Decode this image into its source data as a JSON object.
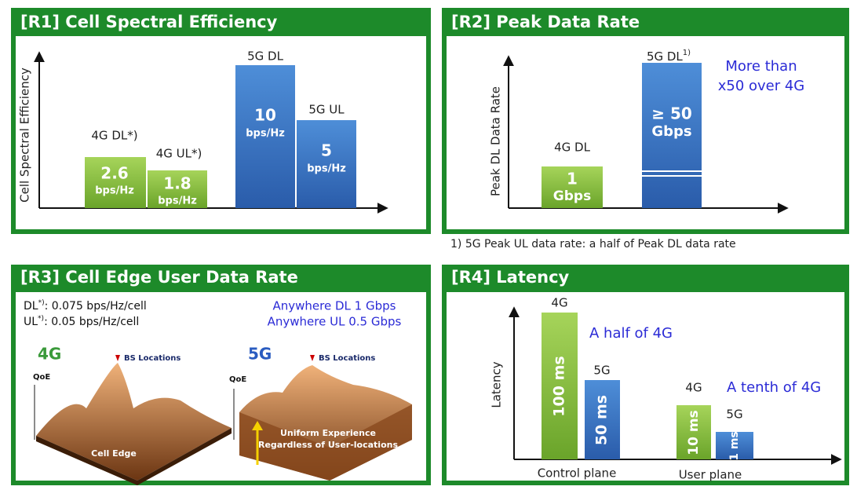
{
  "panels": [
    {
      "title": "[R1] Cell Spectral Efficiency",
      "axis_label": "Cell Spectral Efficiency",
      "bars": [
        {
          "label": "4G DL*)",
          "value": "2.6",
          "unit": "bps/Hz"
        },
        {
          "label": "4G UL*)",
          "value": "1.8",
          "unit": "bps/Hz"
        },
        {
          "label": "5G DL",
          "value": "10",
          "unit": "bps/Hz"
        },
        {
          "label": "5G UL",
          "value": "5",
          "unit": "bps/Hz"
        }
      ]
    },
    {
      "title": "[R2] Peak Data Rate",
      "axis_label": "Peak DL Data Rate",
      "bars": [
        {
          "label": "4G DL",
          "value": "1",
          "unit": "Gbps"
        },
        {
          "label": "5G DL",
          "sup": "1)",
          "value": "≥ 50",
          "unit": "Gbps"
        }
      ],
      "note": [
        "More than",
        "x50 over 4G"
      ],
      "footnote": "1) 5G Peak UL data rate: a half of Peak DL data rate"
    },
    {
      "title": "[R3] Cell Edge User Data Rate",
      "lines": [
        {
          "name": "DL",
          "sup": "*)",
          "text": ": 0.075 bps/Hz/cell"
        },
        {
          "name": "UL",
          "sup": "*)",
          "text": ": 0.05 bps/Hz/cell"
        }
      ],
      "goals": [
        "Anywhere DL 1 Gbps",
        "Anywhere UL 0.5 Gbps"
      ],
      "left": {
        "title": "4G",
        "axis": "QoE",
        "marker": "BS Locations",
        "caption": "Cell Edge"
      },
      "right": {
        "title": "5G",
        "axis": "QoE",
        "marker": "BS Locations",
        "caption": [
          "Uniform Experience",
          "Regardless of User-locations"
        ]
      }
    },
    {
      "title": "[R4] Latency",
      "axis_label": "Latency",
      "groups": [
        {
          "name": "Control plane",
          "note": "A half of 4G",
          "bars": [
            {
              "label": "4G",
              "value": "100 ms"
            },
            {
              "label": "5G",
              "value": "50 ms"
            }
          ]
        },
        {
          "name": "User plane",
          "note": "A tenth of 4G",
          "bars": [
            {
              "label": "4G",
              "value": "10 ms"
            },
            {
              "label": "5G",
              "value": "1 ms"
            }
          ]
        }
      ]
    }
  ]
}
